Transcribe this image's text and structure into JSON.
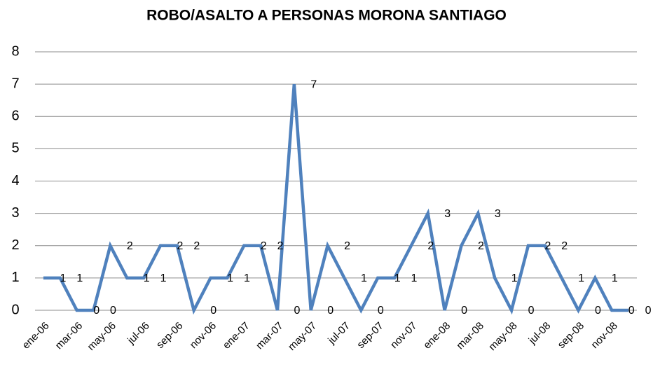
{
  "chart_data": {
    "type": "line",
    "title": "ROBO/ASALTO A PERSONAS MORONA SANTIAGO",
    "categories": [
      "ene-06",
      null,
      "mar-06",
      null,
      "may-06",
      null,
      "jul-06",
      null,
      "sep-06",
      null,
      "nov-06",
      null,
      "ene-07",
      null,
      "mar-07",
      null,
      "may-07",
      null,
      "jul-07",
      null,
      "sep-07",
      null,
      "nov-07",
      null,
      "ene-08",
      null,
      "mar-08",
      null,
      "may-08",
      null,
      "jul-08",
      null,
      "sep-08",
      null,
      "nov-08",
      null
    ],
    "values": [
      1,
      1,
      0,
      0,
      2,
      1,
      1,
      2,
      2,
      0,
      1,
      1,
      2,
      2,
      0,
      7,
      0,
      2,
      1,
      0,
      1,
      1,
      2,
      3,
      0,
      2,
      3,
      1,
      0,
      2,
      2,
      1,
      0,
      1,
      0,
      0
    ],
    "color": "#4f81bd",
    "ylim": [
      0,
      8
    ],
    "yticks": [
      0,
      1,
      2,
      3,
      4,
      5,
      6,
      7,
      8
    ],
    "grid": true
  }
}
